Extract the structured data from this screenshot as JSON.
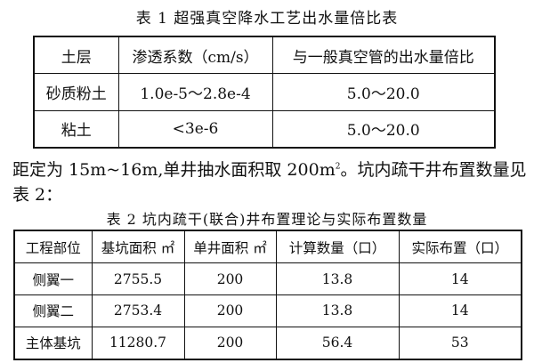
{
  "table1": {
    "caption": "表 1 超强真空降水工艺出水量倍比表",
    "headers": [
      "土层",
      "渗透系数（cm/s）",
      "与一般真空管的出水量倍比"
    ],
    "rows": [
      [
        "砂质粉土",
        "1.0e-5～2.8e-4",
        "5.0～20.0"
      ],
      [
        "粘土",
        "<3e-6",
        "5.0～20.0"
      ]
    ]
  },
  "paragraph": {
    "line1_a": "距定为 15m~16m,单井抽水面积取 200m",
    "line1_sup": "2",
    "line1_b": "。坑内疏干井布置数量见",
    "line2": "表 2："
  },
  "table2": {
    "caption": "表 2 坑内疏干(联合)井布置理论与实际布置数量",
    "headers": [
      "工程部位",
      "基坑面积 ㎡",
      "单井面积 ㎡",
      "计算数量（口）",
      "实际布置（口）"
    ],
    "rows": [
      [
        "侧翼一",
        "2755.5",
        "200",
        "13.8",
        "14"
      ],
      [
        "侧翼二",
        "2753.4",
        "200",
        "13.8",
        "14"
      ],
      [
        "主体基坑",
        "11280.7",
        "200",
        "56.4",
        "53"
      ]
    ]
  }
}
